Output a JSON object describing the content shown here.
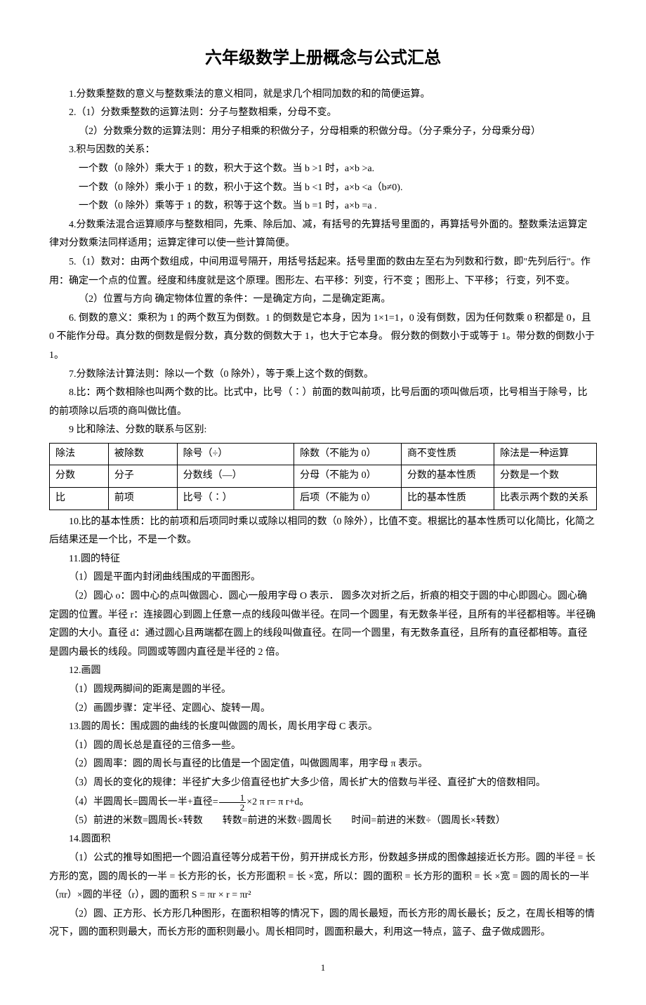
{
  "title": "六年级数学上册概念与公式汇总",
  "p1": "1.分数乘整数的意义与整数乘法的意义相同，就是求几个相同加数的和的简便运算。",
  "p2": "2.（1）分数乘整数的运算法则：分子与整数相乘，分母不变。",
  "p2b": "（2）分数乘分数的运算法则：用分子相乘的积做分子，分母相乘的积做分母。（分子乘分子，分母乘分母）",
  "p3": "3.积与因数的关系：",
  "p3a": "一个数（0 除外）乘大于 1 的数，积大于这个数。当 b >1 时，a×b >a.",
  "p3b": "一个数（0 除外）乘小于 1 的数，积小于这个数。当 b <1 时，a×b <a（b≠0).",
  "p3c": "一个数（0 除外）乘等于 1 的数，积等于这个数。当 b =1 时，a×b =a .",
  "p4": "4.分数乘法混合运算顺序与整数相同，先乘、除后加、减，有括号的先算括号里面的，再算括号外面的。整数乘法运算定律对分数乘法同样适用；运算定律可以使一些计算简便。",
  "p5": "5.（1）数对：由两个数组成，中间用逗号隔开，用括号括起来。括号里面的数由左至右为列数和行数，即\"先列后行\"。作用：确定一个点的位置。经度和纬度就是这个原理。图形左、右平移：列变，行不变 ；图形上、下平移； 行变，列不变。",
  "p5b": "（2）位置与方向 确定物体位置的条件：一是确定方向，二是确定距离。",
  "p6": "6. 倒数的意义：乘积为 1 的两个数互为倒数。1 的倒数是它本身，因为 1×1=1，0 没有倒数，因为任何数乘 0 积都是 0，且 0 不能作分母。真分数的倒数是假分数，真分数的倒数大于 1，也大于它本身。 假分数的倒数小于或等于 1。带分数的倒数小于 1。",
  "p7": "7.分数除法计算法则：除以一个数（0 除外），等于乘上这个数的倒数。",
  "p8": "8.比：两个数相除也叫两个数的比。比式中，比号（∶）前面的数叫前项，比号后面的项叫做后项，比号相当于除号，比的前项除以后项的商叫做比值。",
  "p9": "9 比和除法、分数的联系与区别:",
  "table": {
    "rows": [
      [
        "除法",
        "被除数",
        "除号（÷）",
        "除数（不能为 0）",
        "商不变性质",
        "除法是一种运算"
      ],
      [
        "分数",
        "分子",
        "分数线（—）",
        "分母（不能为 0）",
        "分数的基本性质",
        "分数是一个数"
      ],
      [
        "比",
        "前项",
        "比号（∶）",
        "后项（不能为 0）",
        "比的基本性质",
        "比表示两个数的关系"
      ]
    ]
  },
  "p10": "10.比的基本性质：比的前项和后项同时乘以或除以相同的数（0 除外），比值不变。根据比的基本性质可以化简比，化简之后结果还是一个比，不是一个数。",
  "p11": "11.圆的特征",
  "p11a": "（1）圆是平面内封闭曲线围成的平面图形。",
  "p11b": "（2）圆心 o：圆中心的点叫做圆心．圆心一般用字母 O 表示． 圆多次对折之后，折痕的相交于圆的中心即圆心。圆心确定圆的位置。半径 r：连接圆心到圆上任意一点的线段叫做半径。在同一个圆里，有无数条半径，且所有的半径都相等。半径确定圆的大小。直径 d：通过圆心且两端都在圆上的线段叫做直径。在同一个圆里，有无数条直径，且所有的直径都相等。直径是圆内最长的线段。同圆或等圆内直径是半径的 2 倍。",
  "p12": "12.画圆",
  "p12a": "（1）圆规两脚间的距离是圆的半径。",
  "p12b": "（2）画圆步骤：定半径、定圆心、旋转一周。",
  "p13": "13.圆的周长：围成圆的曲线的长度叫做圆的周长，周长用字母 C 表示。",
  "p13a": "（1）圆的周长总是直径的三倍多一些。",
  "p13b": "（2）圆周率：圆的周长与直径的比值是一个固定值，叫做圆周率，用字母 π 表示。",
  "p13c": "（3）周长的变化的规律：半径扩大多少倍直径也扩大多少倍，周长扩大的倍数与半径、直径扩大的倍数相同。",
  "p13d_pre": "（4）半圆周长=圆周长一半+直径=",
  "p13d_post": "×2 π r= π r+d。",
  "frac": {
    "num": "1",
    "den": "2"
  },
  "p13e": "（5）前进的米数=圆周长×转数  转数=前进的米数÷圆周长  时间=前进的米数÷（圆周长×转数）",
  "p14": "14.圆面积",
  "p14a": "（1）公式的推导如图把一个圆沿直径等分成若干份，剪开拼成长方形，份数越多拼成的图像越接近长方形。圆的半径 = 长方形的宽，圆的周长的一半 = 长方形的长，长方形面积 = 长 ×宽，所以：圆的面积 = 长方形的面积 = 长 ×宽 = 圆的周长的一半（πr）×圆的半径（r），圆的面积 S = πr × r = πr²",
  "p14b": "（2）圆、正方形、长方形几种图形，在面积相等的情况下，圆的周长最短，而长方形的周长最长；反之，在周长相等的情况下，圆的面积则最大，而长方形的面积则最小。周长相同时，圆面积最大，利用这一特点，篮子、盘子做成圆形。",
  "pageNum": "1"
}
